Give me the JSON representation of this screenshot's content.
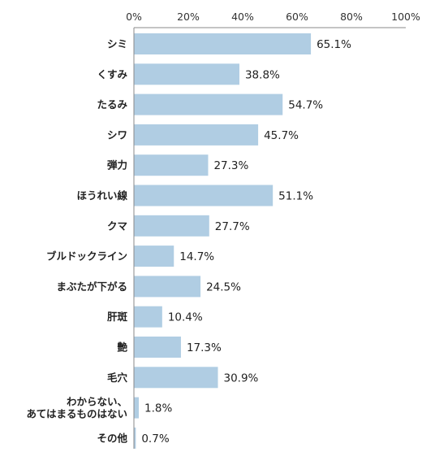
{
  "chart_data": {
    "type": "bar",
    "orientation": "horizontal",
    "categories": [
      "シミ",
      "くすみ",
      "たるみ",
      "シワ",
      "弾力",
      "ほうれい線",
      "クマ",
      "ブルドックライン",
      "まぶたが下がる",
      "肝斑",
      "艶",
      "毛穴",
      "わからない、\nあてはまるものはない",
      "その他"
    ],
    "values": [
      65.1,
      38.8,
      54.7,
      45.7,
      27.3,
      51.1,
      27.7,
      14.7,
      24.5,
      10.4,
      17.3,
      30.9,
      1.8,
      0.7
    ],
    "value_labels": [
      "65.1%",
      "38.8%",
      "54.7%",
      "45.7%",
      "27.3%",
      "51.1%",
      "27.7%",
      "14.7%",
      "24.5%",
      "10.4%",
      "17.3%",
      "30.9%",
      "1.8%",
      "0.7%"
    ],
    "xlim": [
      0,
      100
    ],
    "x_ticks": [
      0,
      20,
      40,
      60,
      80,
      100
    ],
    "x_tick_labels": [
      "0%",
      "20%",
      "40%",
      "60%",
      "80%",
      "100%"
    ],
    "x_axis_position": "top",
    "grid": false,
    "bar_color": "#b0cde3",
    "axis_color": "#888888"
  }
}
